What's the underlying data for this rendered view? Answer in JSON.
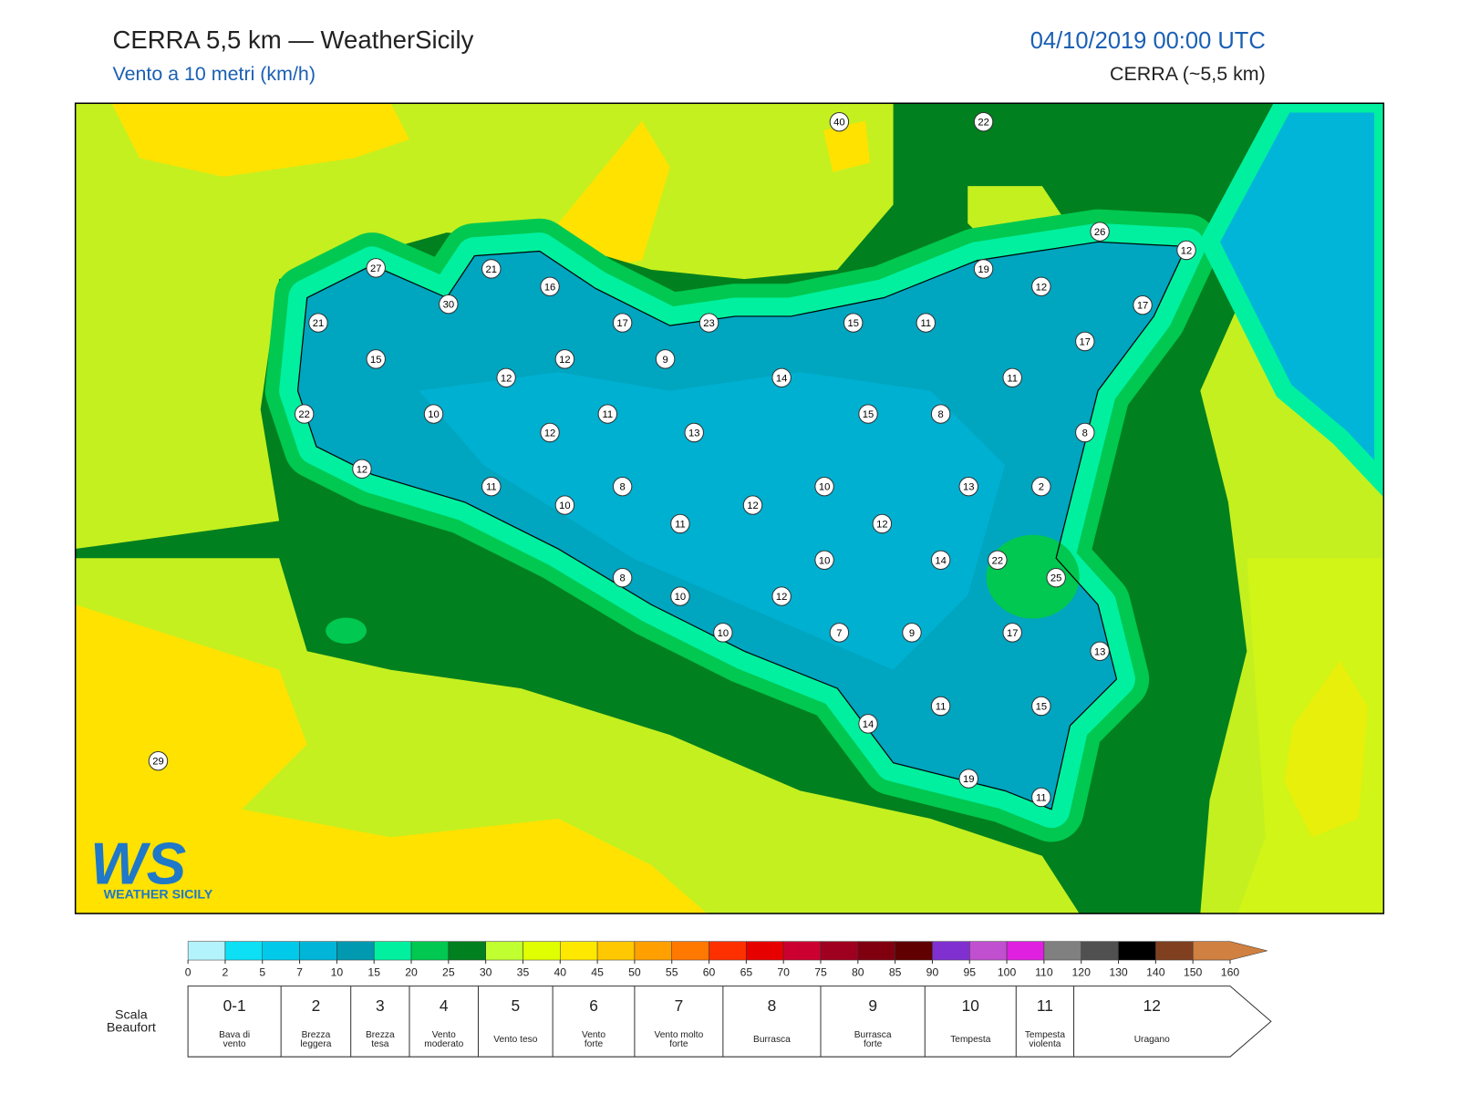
{
  "header": {
    "title": "CERRA 5,5 km — WeatherSicily",
    "subtitle": "Vento a 10 metri (km/h)",
    "datetime": "04/10/2019 00:00 UTC",
    "model": "CERRA (~5,5 km)"
  },
  "logo": {
    "mark": "WS",
    "text": "WEATHER SICILY"
  },
  "stations": [
    40,
    22,
    26,
    12,
    27,
    21,
    19,
    16,
    12,
    30,
    17,
    21,
    17,
    23,
    15,
    11,
    17,
    15,
    12,
    9,
    12,
    14,
    11,
    22,
    10,
    11,
    15,
    8,
    12,
    13,
    8,
    12,
    11,
    8,
    10,
    13,
    2,
    10,
    12,
    11,
    12,
    10,
    14,
    22,
    25,
    8,
    10,
    12,
    10,
    7,
    9,
    17,
    13,
    11,
    15,
    14,
    19,
    11,
    29
  ],
  "colorbar": {
    "ticks": [
      0,
      2,
      5,
      7,
      10,
      15,
      20,
      25,
      30,
      35,
      40,
      45,
      50,
      55,
      60,
      65,
      70,
      75,
      80,
      85,
      90,
      95,
      100,
      110,
      120,
      130,
      140,
      150,
      160
    ],
    "colors": [
      "#b3f3fb",
      "#0de0f5",
      "#00c9ea",
      "#00b5d8",
      "#0099b0",
      "#00f0a0",
      "#00c850",
      "#00801e",
      "#c0ff30",
      "#e0ff00",
      "#ffe800",
      "#ffc800",
      "#ffa000",
      "#ff7800",
      "#ff3000",
      "#e60000",
      "#cc0030",
      "#a00020",
      "#800010",
      "#600000",
      "#8030d0",
      "#c050d0",
      "#e020e0",
      "#808080",
      "#505050",
      "#000000",
      "#804020",
      "#d08040"
    ]
  },
  "beaufort": {
    "label": [
      "Scala",
      "Beaufort"
    ],
    "entries": [
      {
        "force": "0-1",
        "desc": [
          "Bava di",
          "vento"
        ]
      },
      {
        "force": "2",
        "desc": [
          "Brezza",
          "leggera"
        ]
      },
      {
        "force": "3",
        "desc": [
          "Brezza",
          "tesa"
        ]
      },
      {
        "force": "4",
        "desc": [
          "Vento",
          "moderato"
        ]
      },
      {
        "force": "5",
        "desc": [
          "Vento teso"
        ]
      },
      {
        "force": "6",
        "desc": [
          "Vento",
          "forte"
        ]
      },
      {
        "force": "7",
        "desc": [
          "Vento molto",
          "forte"
        ]
      },
      {
        "force": "8",
        "desc": [
          "Burrasca"
        ]
      },
      {
        "force": "9",
        "desc": [
          "Burrasca",
          "forte"
        ]
      },
      {
        "force": "10",
        "desc": [
          "Tempesta"
        ]
      },
      {
        "force": "11",
        "desc": [
          "Tempesta",
          "violenta"
        ]
      },
      {
        "force": "12",
        "desc": [
          "Uragano"
        ]
      }
    ]
  }
}
